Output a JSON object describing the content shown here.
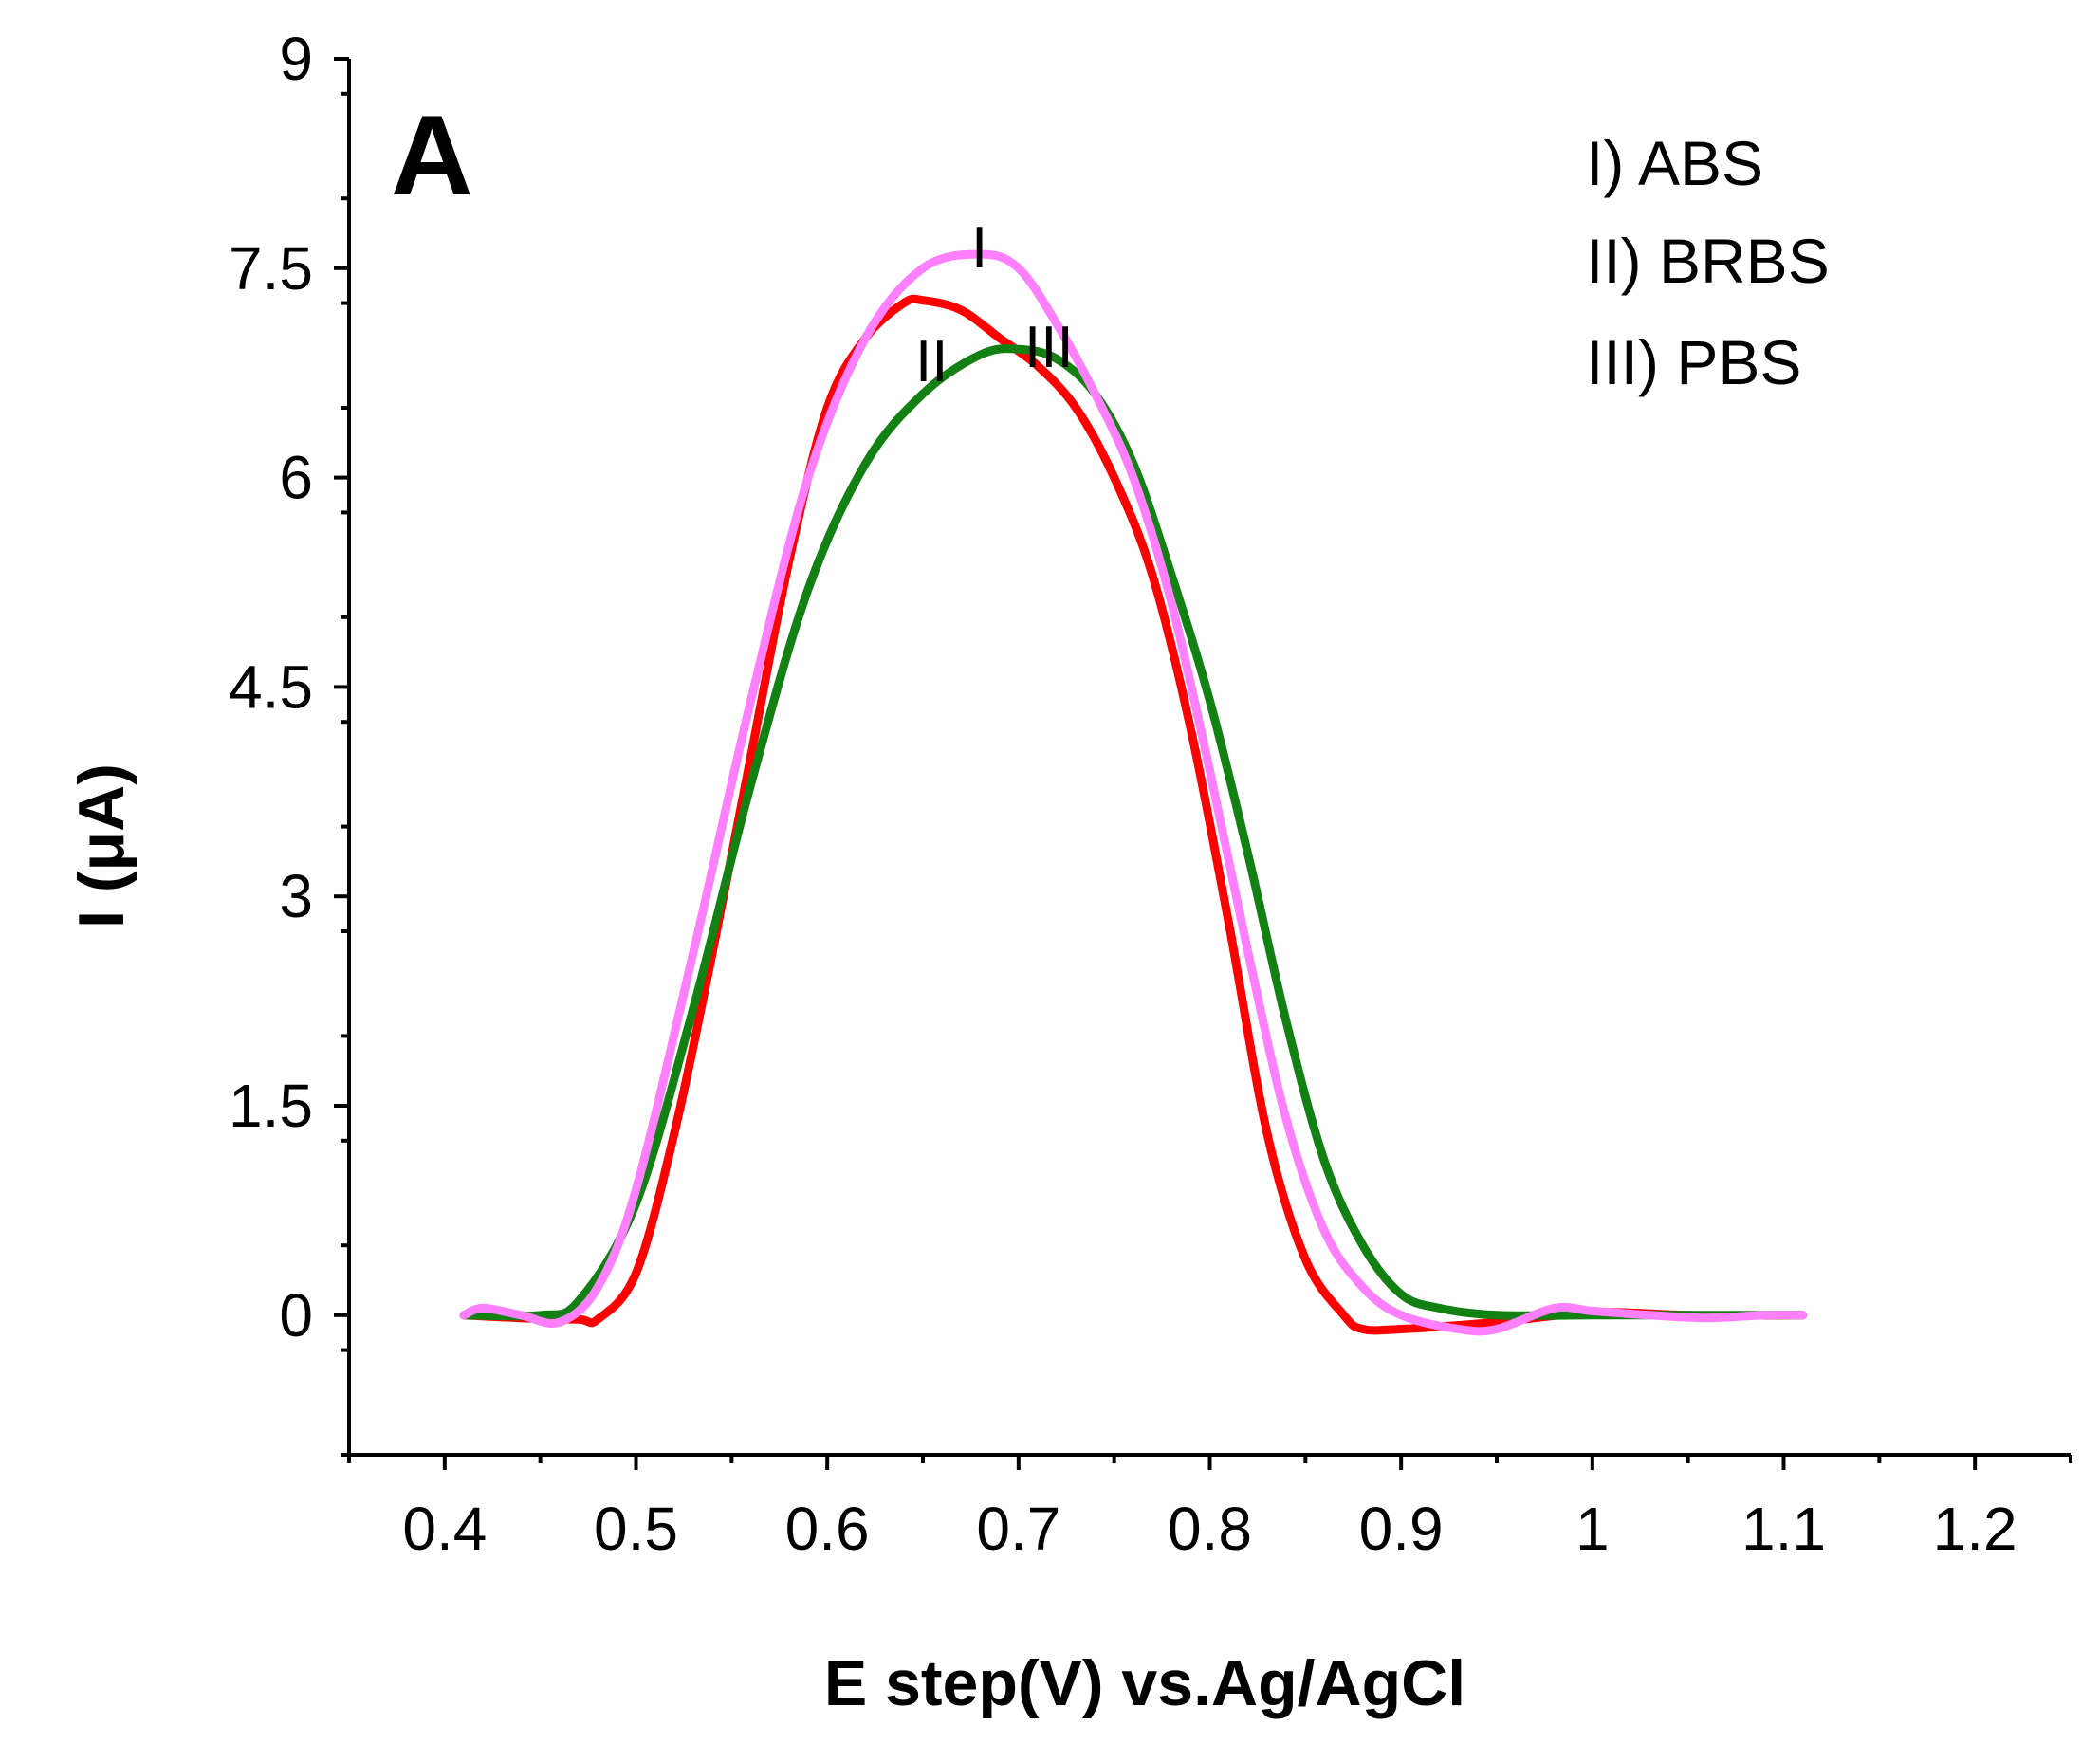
{
  "chart_data": {
    "type": "line",
    "panel_label": "A",
    "title": "",
    "xlabel": "E step(V) vs.Ag/AgCl",
    "ylabel": "I (μA)",
    "xlim": [
      0.35,
      1.25
    ],
    "ylim": [
      -1.0,
      9.0
    ],
    "x_ticks": [
      0.4,
      0.5,
      0.6,
      0.7,
      0.8,
      0.9,
      1.0,
      1.1,
      1.2
    ],
    "x_tick_labels": [
      "0.4",
      "0.5",
      "0.6",
      "0.7",
      "0.8",
      "0.9",
      "1",
      "1.1",
      "1.2"
    ],
    "y_ticks": [
      0,
      1.5,
      3,
      4.5,
      6,
      7.5,
      9
    ],
    "y_tick_labels": [
      "0",
      "1.5",
      "3",
      "4.5",
      "6",
      "7.5",
      "9"
    ],
    "grid": false,
    "legend": {
      "position": "top-right",
      "entries": [
        "I) ABS",
        "II) BRBS",
        "III) PBS"
      ]
    },
    "series": [
      {
        "name": "II) BRBS",
        "label": "II",
        "color": "#ff0000",
        "x": [
          0.41,
          0.44,
          0.47,
          0.48,
          0.5,
          0.52,
          0.54,
          0.56,
          0.58,
          0.6,
          0.62,
          0.64,
          0.65,
          0.67,
          0.69,
          0.71,
          0.73,
          0.75,
          0.77,
          0.79,
          0.81,
          0.83,
          0.85,
          0.87,
          0.88,
          0.9,
          0.95,
          1.0,
          1.05,
          1.11
        ],
        "y": [
          0.0,
          -0.02,
          -0.03,
          -0.03,
          0.3,
          1.3,
          2.6,
          4.0,
          5.4,
          6.5,
          7.0,
          7.25,
          7.27,
          7.2,
          7.0,
          6.8,
          6.5,
          6.0,
          5.3,
          4.2,
          2.8,
          1.3,
          0.4,
          0.0,
          -0.1,
          -0.1,
          -0.05,
          0.02,
          0.0,
          0.0
        ]
      },
      {
        "name": "III) PBS",
        "label": "III",
        "color": "#138013",
        "x": [
          0.41,
          0.45,
          0.47,
          0.5,
          0.53,
          0.56,
          0.59,
          0.62,
          0.65,
          0.68,
          0.7,
          0.72,
          0.74,
          0.76,
          0.78,
          0.8,
          0.82,
          0.84,
          0.86,
          0.88,
          0.9,
          0.92,
          0.95,
          1.0,
          1.05,
          1.11
        ],
        "y": [
          0.0,
          0.0,
          0.1,
          0.8,
          2.2,
          3.8,
          5.2,
          6.1,
          6.6,
          6.88,
          6.92,
          6.85,
          6.6,
          6.1,
          5.3,
          4.4,
          3.3,
          2.1,
          1.1,
          0.5,
          0.15,
          0.05,
          0.0,
          0.0,
          0.0,
          0.0
        ]
      },
      {
        "name": "I) ABS",
        "label": "I",
        "color": "#ff80ff",
        "x": [
          0.41,
          0.42,
          0.44,
          0.46,
          0.48,
          0.5,
          0.53,
          0.56,
          0.59,
          0.62,
          0.65,
          0.68,
          0.7,
          0.72,
          0.74,
          0.76,
          0.78,
          0.8,
          0.82,
          0.84,
          0.86,
          0.88,
          0.9,
          0.93,
          0.95,
          0.98,
          1.0,
          1.03,
          1.06,
          1.09,
          1.11
        ],
        "y": [
          0.0,
          0.05,
          0.0,
          -0.05,
          0.2,
          0.9,
          2.6,
          4.4,
          6.0,
          7.0,
          7.5,
          7.6,
          7.5,
          7.1,
          6.6,
          6.0,
          5.1,
          3.9,
          2.6,
          1.4,
          0.6,
          0.2,
          0.0,
          -0.1,
          -0.1,
          0.05,
          0.03,
          0.0,
          -0.02,
          0.0,
          0.0
        ]
      }
    ]
  }
}
